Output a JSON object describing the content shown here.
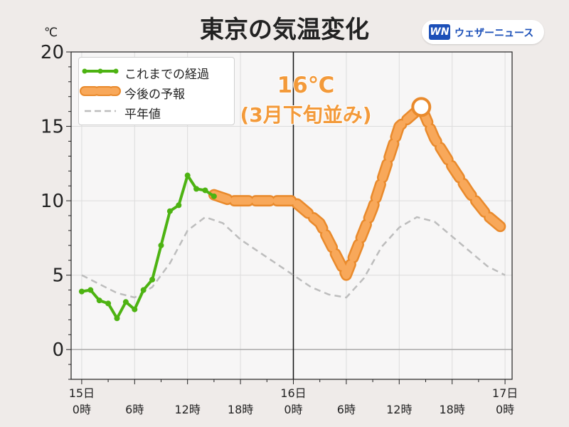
{
  "header": {
    "title": "東京の気温変化",
    "unit": "℃",
    "brand_logo": "WN",
    "brand_name": "ウェザーニュース"
  },
  "annotation": {
    "line1": "16℃",
    "line2": "(3月下旬並み)"
  },
  "colors": {
    "observed": "#4db312",
    "forecast_fill": "#f8a85a",
    "forecast_edge": "#e98a2c",
    "normal": "#bdbdbd",
    "background": "#efebe9",
    "plot_bg": "#f7f6f6"
  },
  "chart_data": {
    "type": "line",
    "title": "東京の気温変化",
    "ylabel": "℃",
    "ylim": [
      -2,
      20
    ],
    "yticks": [
      0,
      5,
      10,
      15,
      20
    ],
    "xlim": [
      -1.2,
      48.8
    ],
    "xticks": [
      {
        "x": 0,
        "line1": "15日",
        "line2": "0時"
      },
      {
        "x": 6,
        "line1": "",
        "line2": "6時"
      },
      {
        "x": 12,
        "line1": "",
        "line2": "12時"
      },
      {
        "x": 18,
        "line1": "",
        "line2": "18時"
      },
      {
        "x": 24,
        "line1": "16日",
        "line2": "0時"
      },
      {
        "x": 30,
        "line1": "",
        "line2": "6時"
      },
      {
        "x": 36,
        "line1": "",
        "line2": "12時"
      },
      {
        "x": 42,
        "line1": "",
        "line2": "18時"
      },
      {
        "x": 48,
        "line1": "17日",
        "line2": "0時"
      }
    ],
    "vline_x": 24,
    "grid": true,
    "legend_position": "top-left",
    "series": [
      {
        "name": "これまでの経過",
        "style": "observed",
        "x": [
          0,
          1,
          2,
          3,
          4,
          5,
          6,
          7,
          8,
          9,
          10,
          11,
          12,
          13,
          14,
          15
        ],
        "y": [
          3.9,
          4.0,
          3.3,
          3.1,
          2.1,
          3.2,
          2.7,
          4.0,
          4.7,
          7.0,
          9.3,
          9.7,
          11.7,
          10.8,
          10.7,
          10.3
        ]
      },
      {
        "name": "今後の予報",
        "style": "forecast",
        "x": [
          15,
          17,
          21,
          24,
          27,
          30,
          33,
          36,
          38.5,
          40,
          42,
          44,
          46,
          48
        ],
        "y": [
          10.4,
          10.0,
          10.0,
          10.0,
          8.5,
          5.0,
          9.5,
          15.0,
          16.3,
          14.2,
          12.3,
          10.5,
          9.0,
          8.0
        ]
      },
      {
        "name": "平年値",
        "style": "normal",
        "x": [
          0,
          2,
          4,
          6,
          8,
          10,
          12,
          14,
          16,
          18,
          20,
          22,
          24,
          26,
          28,
          30,
          32,
          34,
          36,
          38,
          40,
          42,
          44,
          46,
          48
        ],
        "y": [
          5.0,
          4.4,
          3.8,
          3.5,
          4.2,
          5.8,
          8.0,
          8.9,
          8.5,
          7.4,
          6.6,
          5.8,
          5.0,
          4.2,
          3.7,
          3.5,
          4.8,
          6.9,
          8.2,
          8.9,
          8.6,
          7.6,
          6.6,
          5.6,
          5.0
        ]
      }
    ],
    "highlight_point": {
      "x": 38.5,
      "y": 16.3
    }
  }
}
